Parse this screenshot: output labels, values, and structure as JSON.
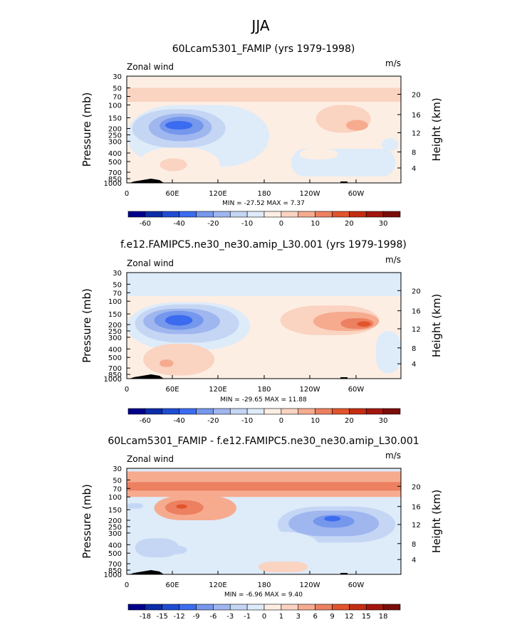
{
  "page": {
    "main_title": "JJA",
    "unit": "m/s",
    "variable": "Zonal wind"
  },
  "colors": {
    "scale": [
      "#00008c",
      "#0c2ca8",
      "#1f4cd2",
      "#3a6bf0",
      "#7597ec",
      "#9fb6ef",
      "#c4d6f4",
      "#deebf9",
      "#fdeee3",
      "#fad3c1",
      "#f6ab8f",
      "#ec8060",
      "#e1542c",
      "#c42d12",
      "#a3160d",
      "#7a0d0a"
    ]
  },
  "chart_data": [
    {
      "type": "heatmap",
      "title": "60Lcam5301_FAMIP (yrs 1979-1998)",
      "label_left": "Zonal wind",
      "label_right": "m/s",
      "ylabel": "Pressure (mb)",
      "ylabel_right": "Height (km)",
      "x_ticks": [
        "0",
        "60E",
        "120E",
        "180",
        "120W",
        "60W"
      ],
      "y_ticks": [
        "30",
        "50",
        "70",
        "100",
        "150",
        "200",
        "250",
        "300",
        "400",
        "500",
        "700",
        "850",
        "1000"
      ],
      "height_ticks": [
        "20",
        "16",
        "12",
        "8",
        "4"
      ],
      "stats": "MIN = -27.52 MAX = 7.37",
      "min": -27.52,
      "max": 7.37,
      "colorbar_labels": [
        "-60",
        "-40",
        "-20",
        "-10",
        "0",
        "10",
        "20",
        "30"
      ]
    },
    {
      "type": "heatmap",
      "title": "f.e12.FAMIPC5.ne30_ne30.amip_L30.001 (yrs 1979-1998)",
      "label_left": "Zonal wind",
      "label_right": "m/s",
      "ylabel": "Pressure (mb)",
      "ylabel_right": "Height (km)",
      "x_ticks": [
        "0",
        "60E",
        "120E",
        "180",
        "120W",
        "60W"
      ],
      "y_ticks": [
        "30",
        "50",
        "70",
        "100",
        "150",
        "200",
        "250",
        "300",
        "400",
        "500",
        "700",
        "850",
        "1000"
      ],
      "height_ticks": [
        "20",
        "16",
        "12",
        "8",
        "4"
      ],
      "stats": "MIN = -29.65 MAX = 11.88",
      "min": -29.65,
      "max": 11.88,
      "colorbar_labels": [
        "-60",
        "-40",
        "-20",
        "-10",
        "0",
        "10",
        "20",
        "30"
      ]
    },
    {
      "type": "heatmap",
      "title": "60Lcam5301_FAMIP - f.e12.FAMIPC5.ne30_ne30.amip_L30.001",
      "label_left": "Zonal wind",
      "label_right": "m/s",
      "ylabel": "Pressure (mb)",
      "ylabel_right": "Height (km)",
      "x_ticks": [
        "0",
        "60E",
        "120E",
        "180",
        "120W",
        "60W"
      ],
      "y_ticks": [
        "30",
        "50",
        "70",
        "100",
        "150",
        "200",
        "250",
        "300",
        "400",
        "500",
        "700",
        "850",
        "1000"
      ],
      "height_ticks": [
        "20",
        "16",
        "12",
        "8",
        "4"
      ],
      "stats": "MIN = -6.96 MAX = 9.40",
      "min": -6.96,
      "max": 9.4,
      "colorbar_labels": [
        "-18",
        "-15",
        "-12",
        "-9",
        "-6",
        "-3",
        "-1",
        "0",
        "1",
        "3",
        "6",
        "9",
        "12",
        "15",
        "18"
      ]
    }
  ]
}
